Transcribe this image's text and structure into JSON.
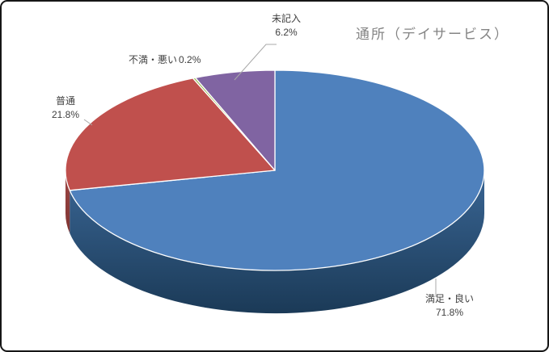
{
  "window": {
    "background": "#ffffff",
    "border_color": "#161616"
  },
  "chart_data": {
    "type": "pie",
    "style": "3d",
    "title": "通所（デイサービス）",
    "title_color": "#848484",
    "label_color": "#3f3f3f",
    "leader_line_color": "#a8a8a8",
    "slice_border_color": "#ffffff",
    "start_angle_deg": 0,
    "direction": "clockwise",
    "legend": "none",
    "categories": [
      "満足・良い",
      "普通",
      "不満・悪い",
      "未記入"
    ],
    "values": [
      71.8,
      21.8,
      0.2,
      6.2
    ],
    "slices": [
      {
        "label": "満足・良い",
        "value": 71.8,
        "pct_label": "71.8%",
        "color": "#4f81bd",
        "rim_top": "#3a6695",
        "rim_bottom": "#1b3a57"
      },
      {
        "label": "普通",
        "value": 21.8,
        "pct_label": "21.8%",
        "color": "#c0504d",
        "rim_top": "#a04846",
        "rim_bottom": "#7e3432"
      },
      {
        "label": "不満・悪い",
        "value": 0.2,
        "pct_label": "0.2%",
        "color": "#9bbb59",
        "rim_top": "#7e9a47",
        "rim_bottom": "#677f3a"
      },
      {
        "label": "未記入",
        "value": 6.2,
        "pct_label": "6.2%",
        "color": "#8064a2",
        "rim_top": "#695183",
        "rim_bottom": "#554169"
      }
    ]
  }
}
